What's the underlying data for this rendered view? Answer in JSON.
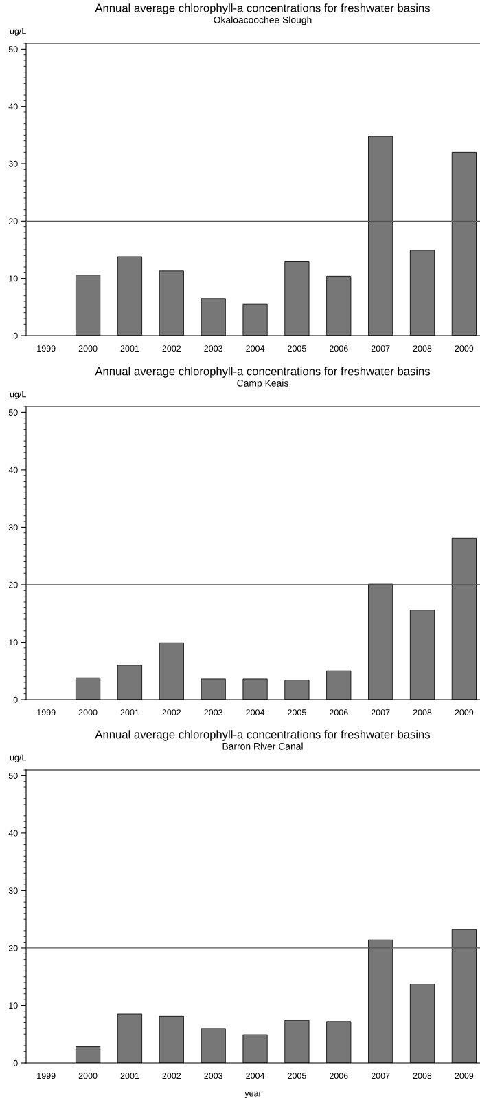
{
  "chart_data": [
    {
      "type": "bar",
      "title": "Annual average chlorophyll-a concentrations for freshwater basins",
      "subtitle": "Okaloacoochee Slough",
      "ylabel": "ug/L",
      "categories": [
        "1999",
        "2000",
        "2001",
        "2002",
        "2003",
        "2004",
        "2005",
        "2006",
        "2007",
        "2008",
        "2009"
      ],
      "values": [
        null,
        10.6,
        13.8,
        11.3,
        6.5,
        5.5,
        12.9,
        10.4,
        34.8,
        14.9,
        32.0
      ],
      "color": "#777777",
      "ylim": [
        0,
        51
      ],
      "yticks": [
        0,
        10,
        20,
        30,
        40,
        50
      ],
      "grid": false,
      "ref_lines": [
        {
          "axis": "y",
          "value": 20,
          "color": "#555555"
        }
      ]
    },
    {
      "type": "bar",
      "title": "Annual average chlorophyll-a concentrations for freshwater basins",
      "subtitle": "Camp Keais",
      "ylabel": "ug/L",
      "categories": [
        "1999",
        "2000",
        "2001",
        "2002",
        "2003",
        "2004",
        "2005",
        "2006",
        "2007",
        "2008",
        "2009"
      ],
      "values": [
        null,
        3.8,
        6.0,
        9.9,
        3.6,
        3.6,
        3.4,
        5.0,
        20.1,
        15.6,
        28.1
      ],
      "color": "#777777",
      "ylim": [
        0,
        51
      ],
      "yticks": [
        0,
        10,
        20,
        30,
        40,
        50
      ],
      "grid": false,
      "ref_lines": [
        {
          "axis": "y",
          "value": 20,
          "color": "#555555"
        }
      ]
    },
    {
      "type": "bar",
      "title": "Annual average chlorophyll-a concentrations for freshwater basins",
      "subtitle": "Barron River Canal",
      "ylabel": "ug/L",
      "xlabel": "year",
      "categories": [
        "1999",
        "2000",
        "2001",
        "2002",
        "2003",
        "2004",
        "2005",
        "2006",
        "2007",
        "2008",
        "2009"
      ],
      "values": [
        null,
        2.8,
        8.5,
        8.1,
        6.0,
        4.9,
        7.4,
        7.2,
        21.4,
        13.7,
        23.2
      ],
      "color": "#777777",
      "ylim": [
        0,
        51
      ],
      "yticks": [
        0,
        10,
        20,
        30,
        40,
        50
      ],
      "grid": false,
      "ref_lines": [
        {
          "axis": "y",
          "value": 20,
          "color": "#555555"
        }
      ]
    }
  ]
}
